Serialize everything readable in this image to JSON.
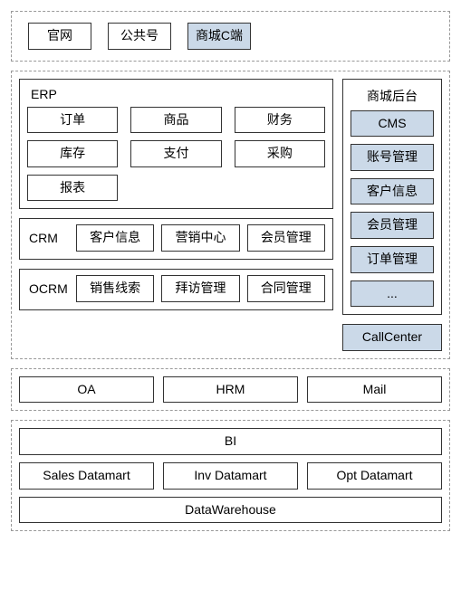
{
  "colors": {
    "border": "#333333",
    "dashed": "#999999",
    "shaded_bg": "#cbd9e8",
    "background": "#ffffff"
  },
  "top": {
    "items": [
      {
        "label": "官网",
        "shaded": false
      },
      {
        "label": "公共号",
        "shaded": false
      },
      {
        "label": "商城C端",
        "shaded": true
      }
    ]
  },
  "main": {
    "left": {
      "erp": {
        "title": "ERP",
        "items": [
          "订单",
          "商品",
          "财务",
          "库存",
          "支付",
          "采购",
          "报表"
        ]
      },
      "crm": {
        "title": "CRM",
        "items": [
          "客户信息",
          "营销中心",
          "会员管理"
        ]
      },
      "ocrm": {
        "title": "OCRM",
        "items": [
          "销售线索",
          "拜访管理",
          "合同管理"
        ]
      }
    },
    "right": {
      "mall_admin": {
        "title": "商城后台",
        "items": [
          "CMS",
          "账号管理",
          "客户信息",
          "会员管理",
          "订单管理",
          "..."
        ]
      },
      "callcenter": {
        "label": "CallCenter",
        "shaded": true
      }
    }
  },
  "office": {
    "items": [
      "OA",
      "HRM",
      "Mail"
    ]
  },
  "bi": {
    "top": "BI",
    "datamarts": [
      "Sales Datamart",
      "Inv Datamart",
      "Opt Datamart"
    ],
    "warehouse": "DataWarehouse"
  }
}
